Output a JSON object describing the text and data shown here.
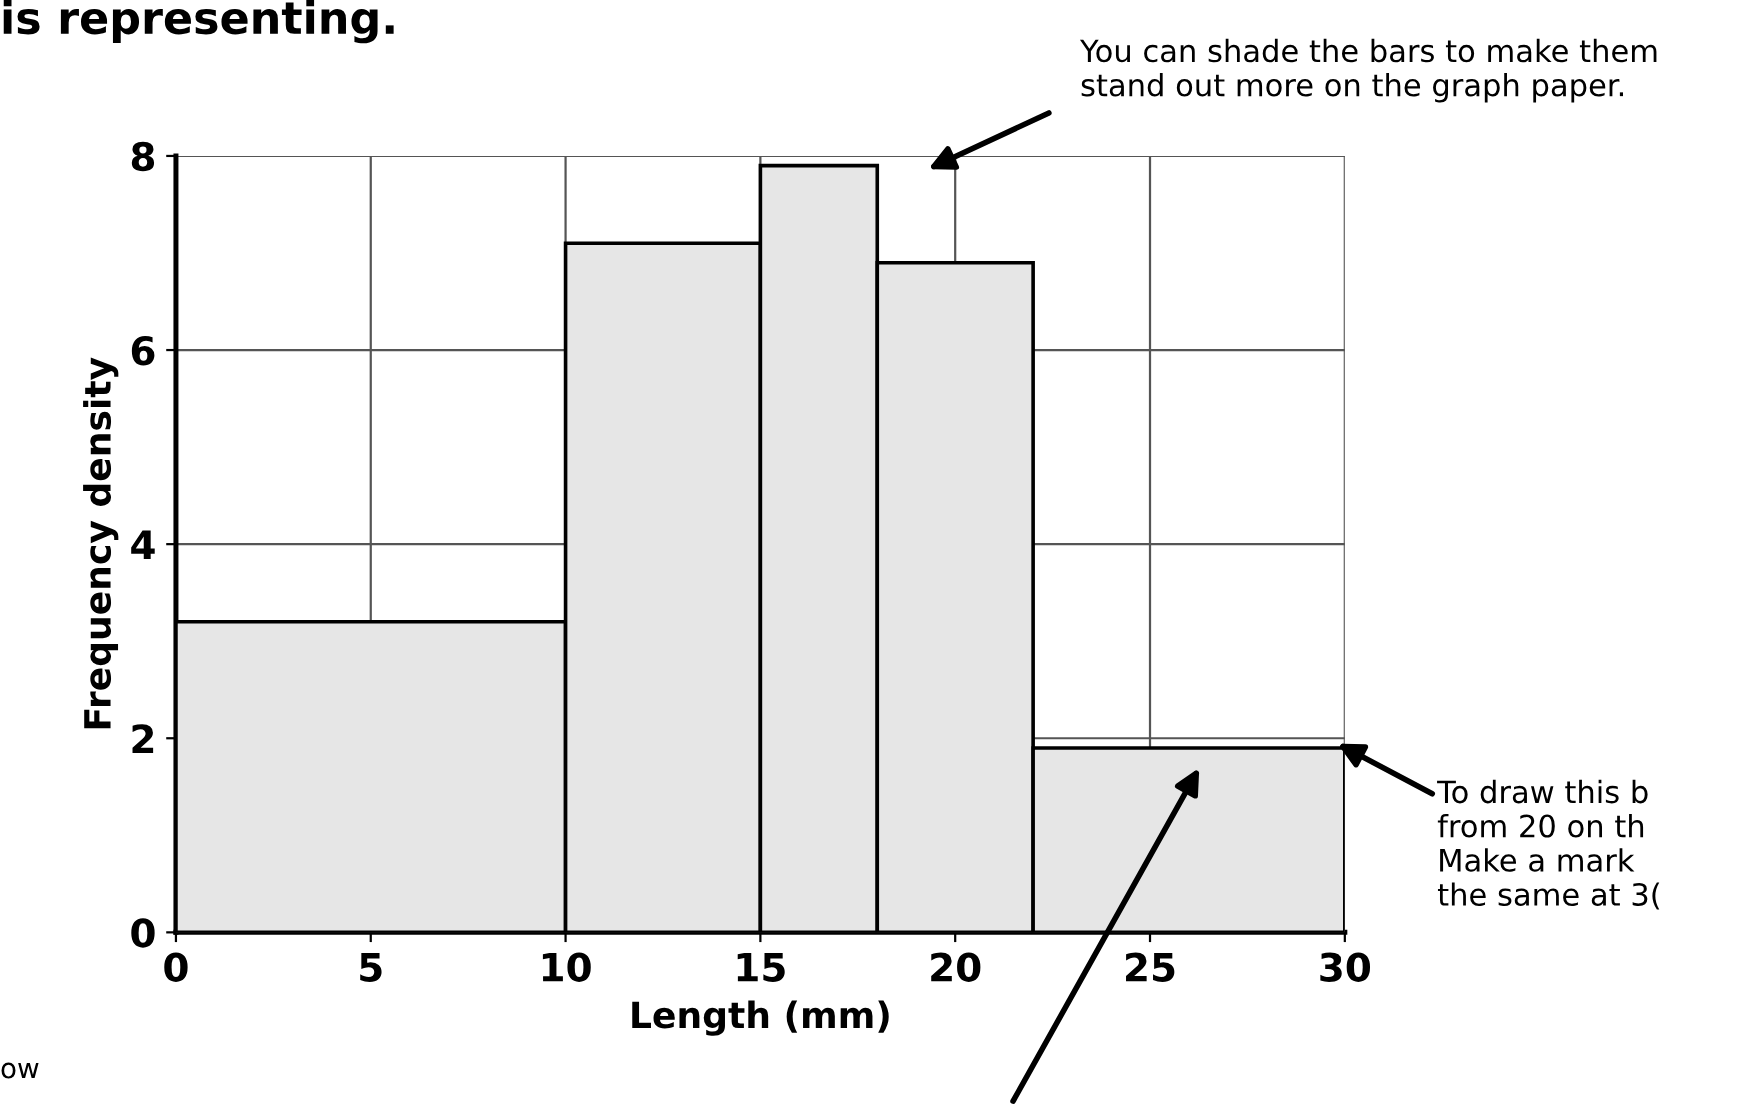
{
  "chart_data": {
    "type": "histogram",
    "xlabel": "Length (mm)",
    "ylabel": "Frequency density",
    "bins": [
      0,
      10,
      15,
      18,
      22,
      30
    ],
    "values": [
      3.2,
      7.1,
      7.9,
      6.9,
      1.9
    ],
    "color": "#e6e6e6",
    "xlim": [
      0,
      30
    ],
    "ylim": [
      0,
      8
    ],
    "xticks": [
      0,
      5,
      10,
      15,
      20,
      25,
      30
    ],
    "yticks": [
      0,
      2,
      4,
      6,
      8
    ],
    "grid": true,
    "annotations": [
      {
        "text": "is representing."
      },
      {
        "text": "You can shade the bars to make them\nstand out more on the graph paper."
      },
      {
        "text": "To draw this b\nfrom 20 on th\nMake a mark\nthe same at 3("
      },
      {
        "text": "ow"
      }
    ]
  }
}
